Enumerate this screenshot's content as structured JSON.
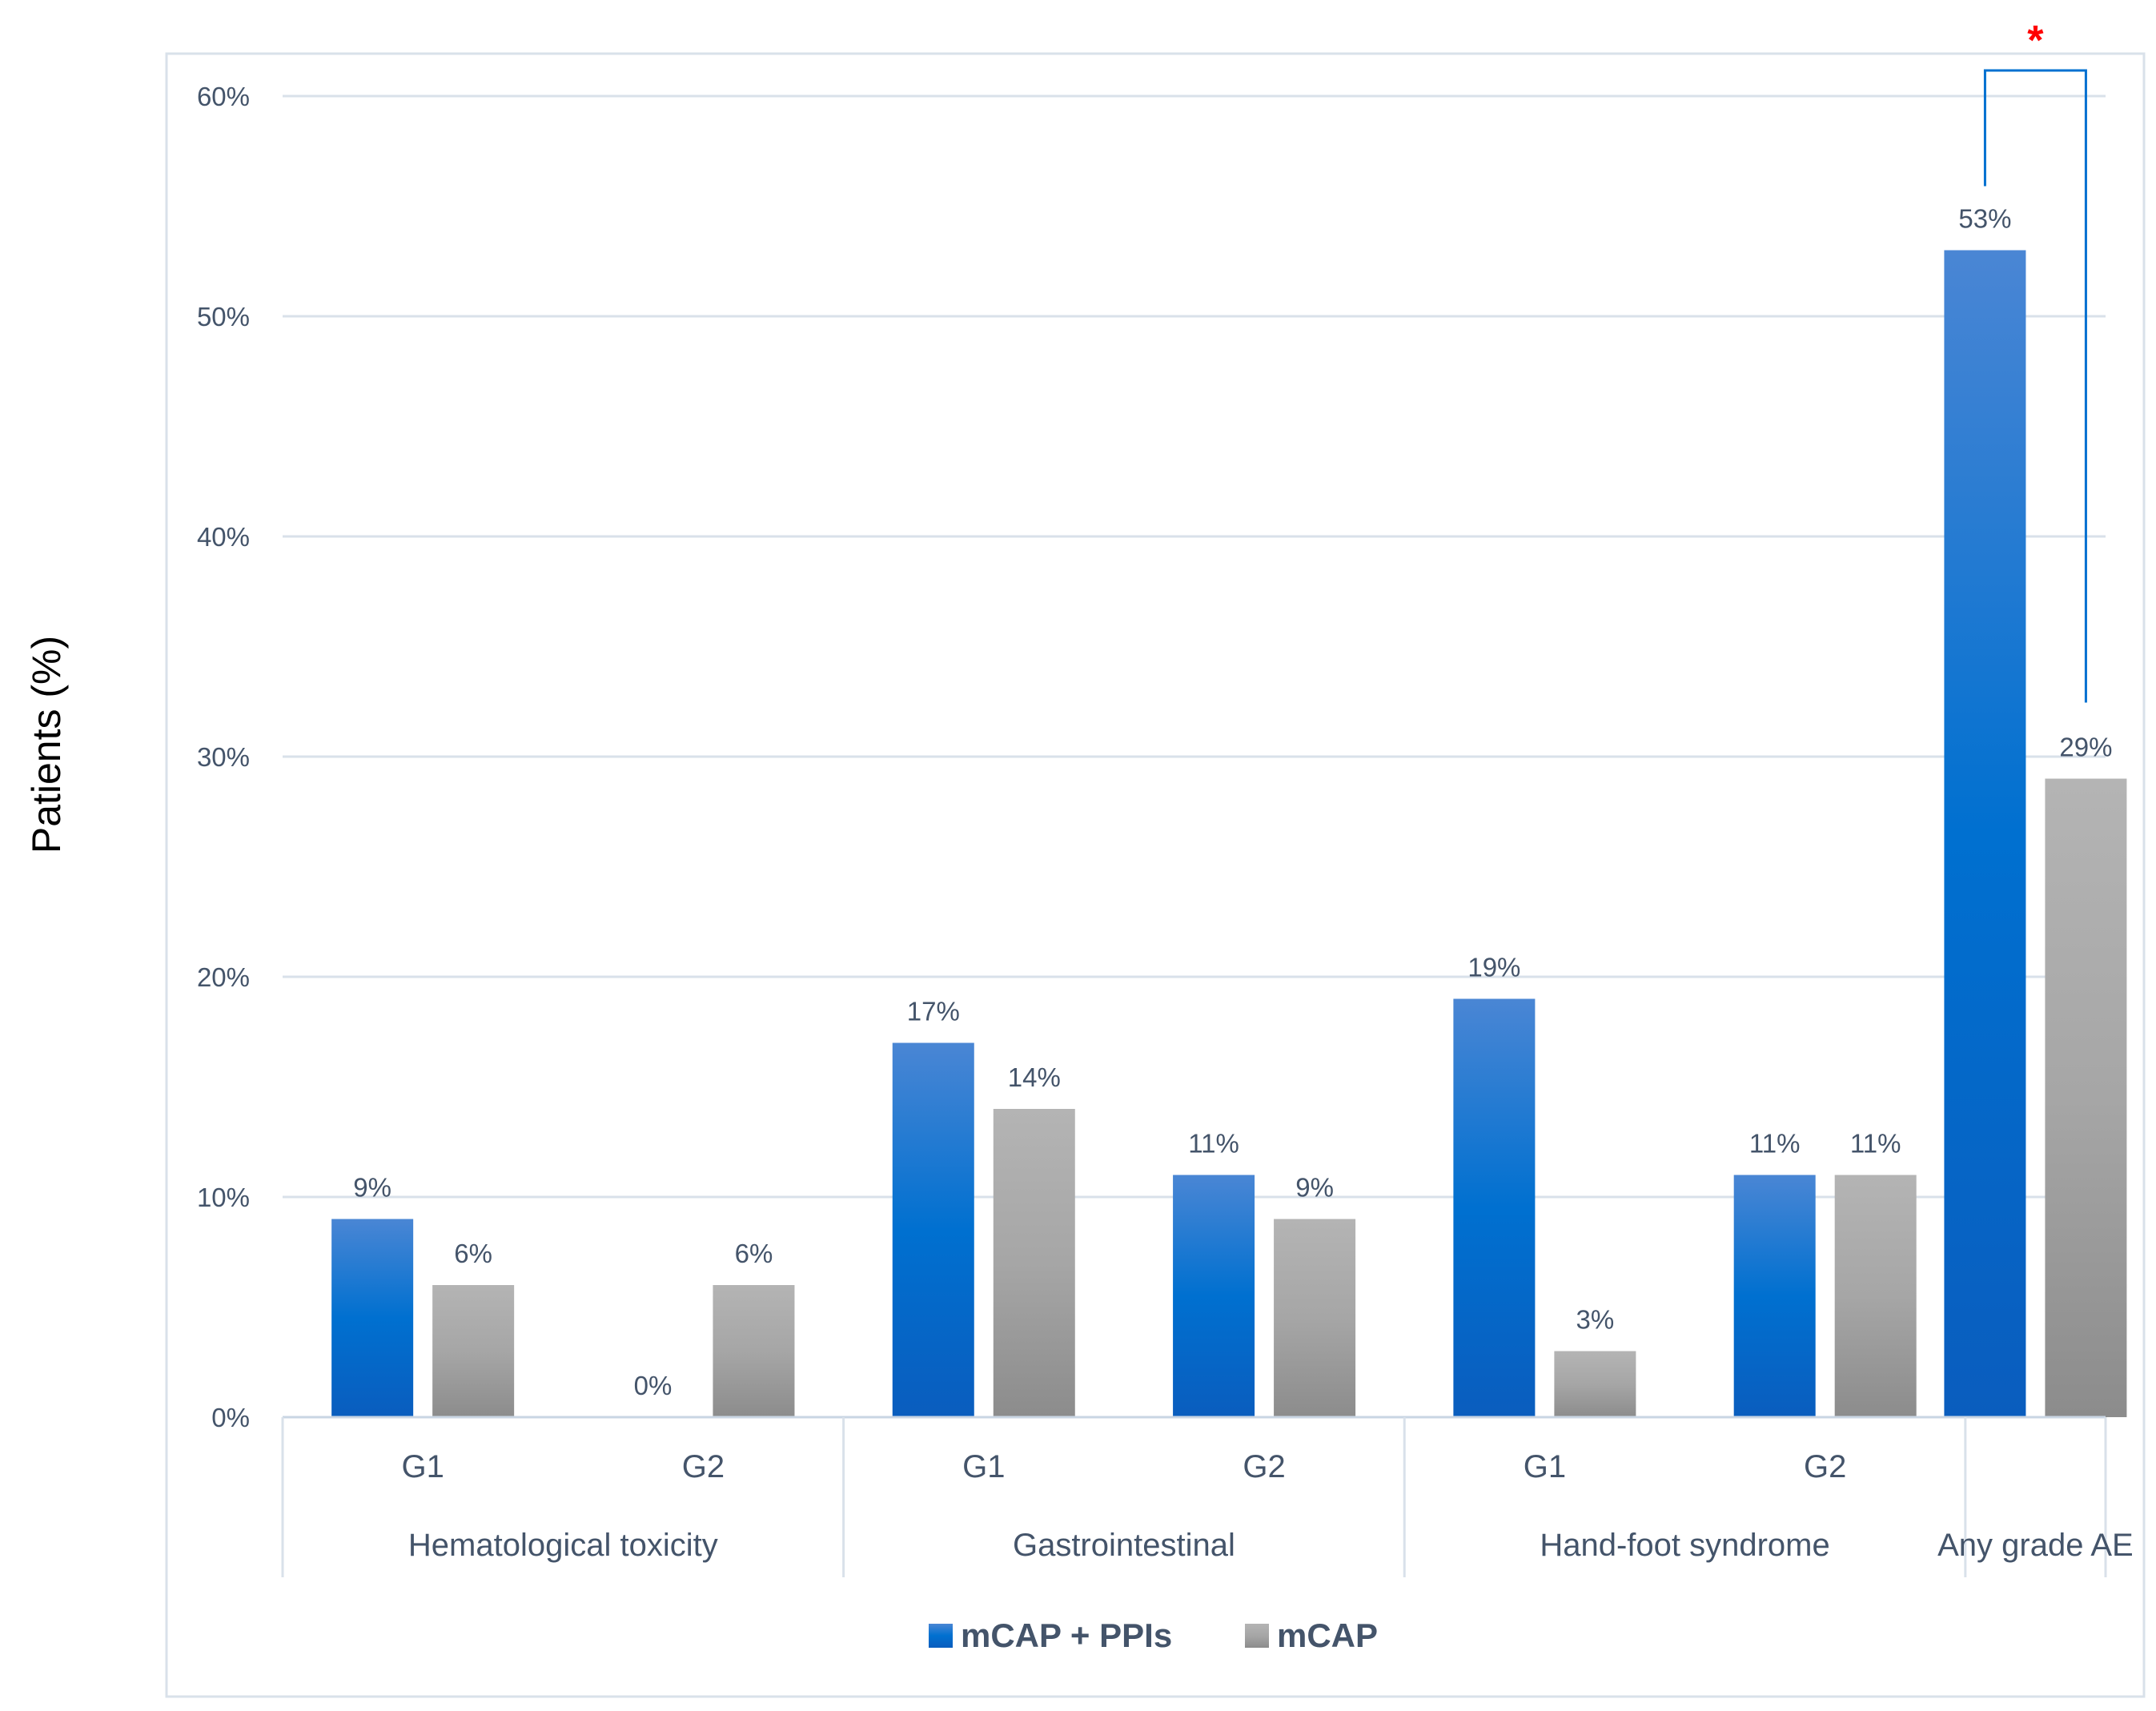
{
  "chart_data": {
    "type": "bar",
    "title": "",
    "xlabel": "",
    "ylabel": "Patients (%)",
    "ylim": [
      0,
      60
    ],
    "yticks": [
      0,
      10,
      20,
      30,
      40,
      50,
      60
    ],
    "ytick_labels": [
      "0%",
      "10%",
      "20%",
      "30%",
      "40%",
      "50%",
      "60%"
    ],
    "grid": true,
    "legend_position": "bottom-center",
    "groups": [
      {
        "name": "Hematological toxicity",
        "subcategories": [
          "G1",
          "G2"
        ]
      },
      {
        "name": "Gastrointestinal",
        "subcategories": [
          "G1",
          "G2"
        ]
      },
      {
        "name": "Hand-foot syndrome",
        "subcategories": [
          "G1",
          "G2"
        ]
      },
      {
        "name": "Any grade AE",
        "subcategories": [
          ""
        ]
      }
    ],
    "categories": [
      "Hematological toxicity G1",
      "Hematological toxicity G2",
      "Gastrointestinal G1",
      "Gastrointestinal G2",
      "Hand-foot syndrome G1",
      "Hand-foot syndrome G2",
      "Any grade AE"
    ],
    "series": [
      {
        "name": "mCAP + PPIs",
        "color": "#0070d0",
        "values": [
          9,
          0,
          17,
          11,
          19,
          11,
          53
        ],
        "labels": [
          "9%",
          "0%",
          "17%",
          "11%",
          "19%",
          "11%",
          "53%"
        ]
      },
      {
        "name": "mCAP",
        "color": "#a6a6a6",
        "values": [
          6,
          6,
          14,
          9,
          3,
          11,
          29
        ],
        "labels": [
          "6%",
          "6%",
          "14%",
          "9%",
          "3%",
          "11%",
          "29%"
        ]
      }
    ],
    "annotation": {
      "text": "*",
      "category": "Any grade AE",
      "between_series": [
        "mCAP + PPIs",
        "mCAP"
      ],
      "color": "#ff0000"
    }
  }
}
